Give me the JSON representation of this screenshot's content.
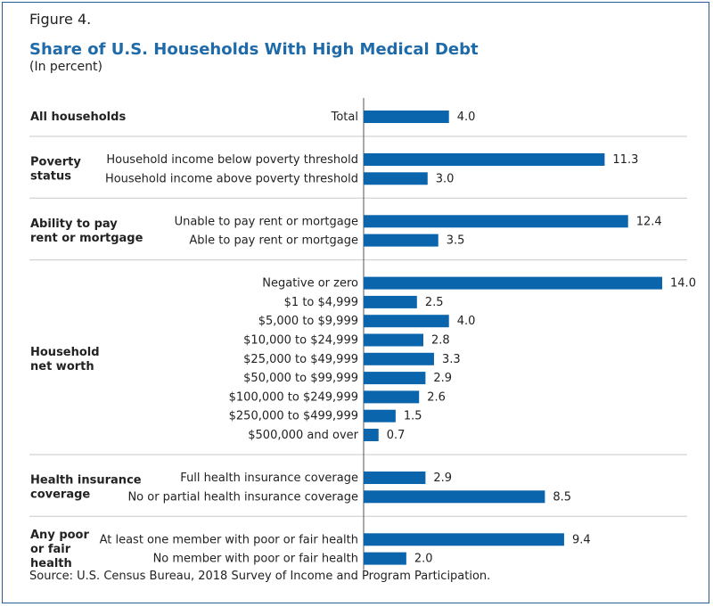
{
  "figure_label": "Figure 4.",
  "source": "Source: U.S. Census Bureau, 2018 Survey of Income and Program Participation.",
  "colors": {
    "bar": "#0b65ad",
    "title": "#1f6aa8",
    "divider": "#c9c9c9",
    "axis": "#555555"
  },
  "chart_data": {
    "type": "bar",
    "orientation": "horizontal",
    "title": "Share of U.S. Households With High Medical Debt",
    "subtitle": "(In percent)",
    "xlim": [
      0,
      14
    ],
    "grid": false,
    "groups": [
      {
        "label": [
          "All households"
        ],
        "categories": [
          "Total"
        ],
        "values": [
          4.0
        ]
      },
      {
        "label": [
          "Poverty",
          "status"
        ],
        "categories": [
          "Household income below poverty threshold",
          "Household income above poverty threshold"
        ],
        "values": [
          11.3,
          3.0
        ]
      },
      {
        "label": [
          "Ability to pay",
          "rent or mortgage"
        ],
        "categories": [
          "Unable to pay rent or mortgage",
          "Able to pay rent or mortgage"
        ],
        "values": [
          12.4,
          3.5
        ]
      },
      {
        "label": [
          "Household",
          "net worth"
        ],
        "categories": [
          "Negative or zero",
          "$1 to $4,999",
          "$5,000 to $9,999",
          "$10,000 to $24,999",
          "$25,000 to $49,999",
          "$50,000 to $99,999",
          "$100,000 to $249,999",
          "$250,000 to $499,999",
          "$500,000 and over"
        ],
        "values": [
          14.0,
          2.5,
          4.0,
          2.8,
          3.3,
          2.9,
          2.6,
          1.5,
          0.7
        ]
      },
      {
        "label": [
          "Health insurance",
          "coverage"
        ],
        "categories": [
          "Full health insurance coverage",
          "No or partial health insurance coverage"
        ],
        "values": [
          2.9,
          8.5
        ]
      },
      {
        "label": [
          "Any poor",
          "or fair",
          "health"
        ],
        "categories": [
          "At least one member with poor or fair health",
          "No member with poor or fair health"
        ],
        "values": [
          9.4,
          2.0
        ]
      }
    ]
  }
}
